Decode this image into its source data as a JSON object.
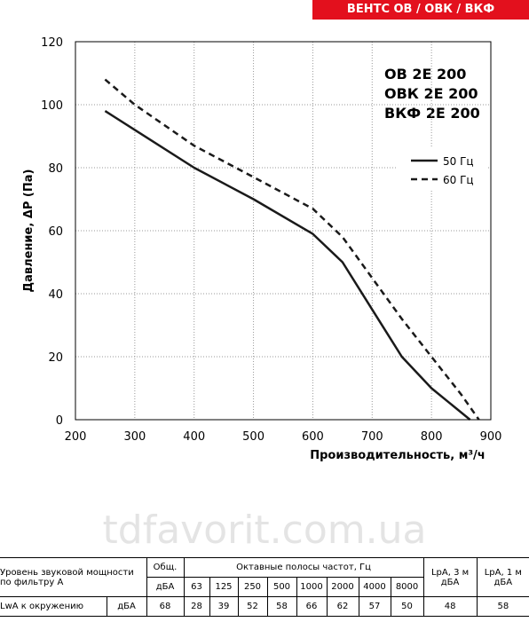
{
  "header": {
    "title": "ВЕНТС ОВ / ОВК / ВКФ"
  },
  "chart_data": {
    "type": "line",
    "ylabel": "Давление, ΔP (Па)",
    "xlabel": "Производительность,  м³/ч",
    "annotations": [
      "ОВ 2Е 200",
      "ОВК 2Е 200",
      "ВКФ 2Е 200"
    ],
    "xlim": [
      200,
      900
    ],
    "xticks": [
      200,
      300,
      400,
      500,
      600,
      700,
      800,
      900
    ],
    "ylim": [
      0,
      120
    ],
    "yticks": [
      0,
      20,
      40,
      60,
      80,
      100,
      120
    ],
    "grid": true,
    "series": [
      {
        "name": "50 Гц",
        "color": "#1a1a1a",
        "dash": false,
        "x": [
          250,
          300,
          400,
          500,
          600,
          650,
          700,
          750,
          800,
          865
        ],
        "values": [
          98,
          92,
          80,
          70,
          59,
          50,
          35,
          20,
          10,
          0
        ]
      },
      {
        "name": "60 Гц",
        "color": "#1a1a1a",
        "dash": true,
        "x": [
          250,
          300,
          400,
          500,
          600,
          650,
          700,
          750,
          800,
          850,
          880
        ],
        "values": [
          108,
          100,
          87,
          77,
          67,
          58,
          45,
          32,
          20,
          8,
          0
        ]
      }
    ]
  },
  "watermark": "tdfavorit.com.ua",
  "table": {
    "row_label": "Уровень звуковой мощности по фильтру А",
    "total": "Общ.",
    "total_unit": "дБА",
    "bands": "Октавные полосы частот, Гц",
    "freqs": [
      63,
      125,
      250,
      500,
      1000,
      2000,
      4000,
      8000
    ],
    "lpa3": "LpA, 3 м дБА",
    "lpa1": "LpA, 1 м дБА",
    "row": {
      "label": "LwA к окружению",
      "unit": "дБА",
      "total": 68,
      "octaves": [
        28,
        39,
        52,
        58,
        66,
        62,
        57,
        50
      ],
      "lpa3": 48,
      "lpa1": 58
    }
  }
}
